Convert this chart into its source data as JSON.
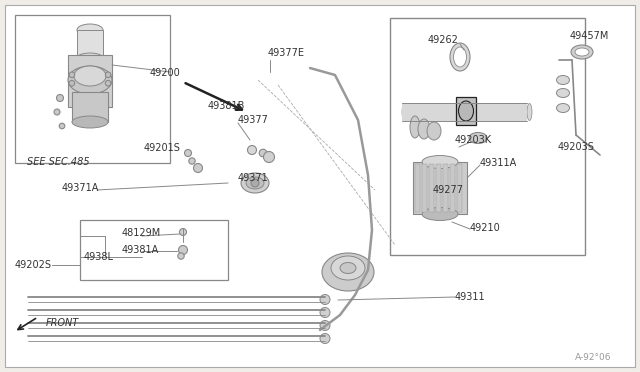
{
  "bg_color": "#f0ede8",
  "line_color": "#888888",
  "dark_line": "#222222",
  "watermark": "A-92°06",
  "font_size": 7.5,
  "font_color": "#333333",
  "label_data": [
    [
      "49200",
      150,
      73
    ],
    [
      "49377E",
      268,
      53
    ],
    [
      "49381B",
      208,
      106
    ],
    [
      "49377",
      238,
      120
    ],
    [
      "49201S",
      144,
      148
    ],
    [
      "49371A",
      62,
      188
    ],
    [
      "49371",
      238,
      178
    ],
    [
      "48129M",
      122,
      233
    ],
    [
      "49381A",
      122,
      250
    ],
    [
      "4938L",
      84,
      257
    ],
    [
      "49202S",
      15,
      265
    ],
    [
      "49262",
      428,
      40
    ],
    [
      "49457M",
      570,
      36
    ],
    [
      "49203K",
      455,
      140
    ],
    [
      "49203S",
      558,
      147
    ],
    [
      "49311A",
      480,
      163
    ],
    [
      "49277",
      433,
      190
    ],
    [
      "49210",
      470,
      228
    ],
    [
      "49311",
      455,
      297
    ],
    [
      "SEE SEC.485",
      27,
      162
    ],
    [
      "FRONT",
      46,
      323
    ]
  ]
}
